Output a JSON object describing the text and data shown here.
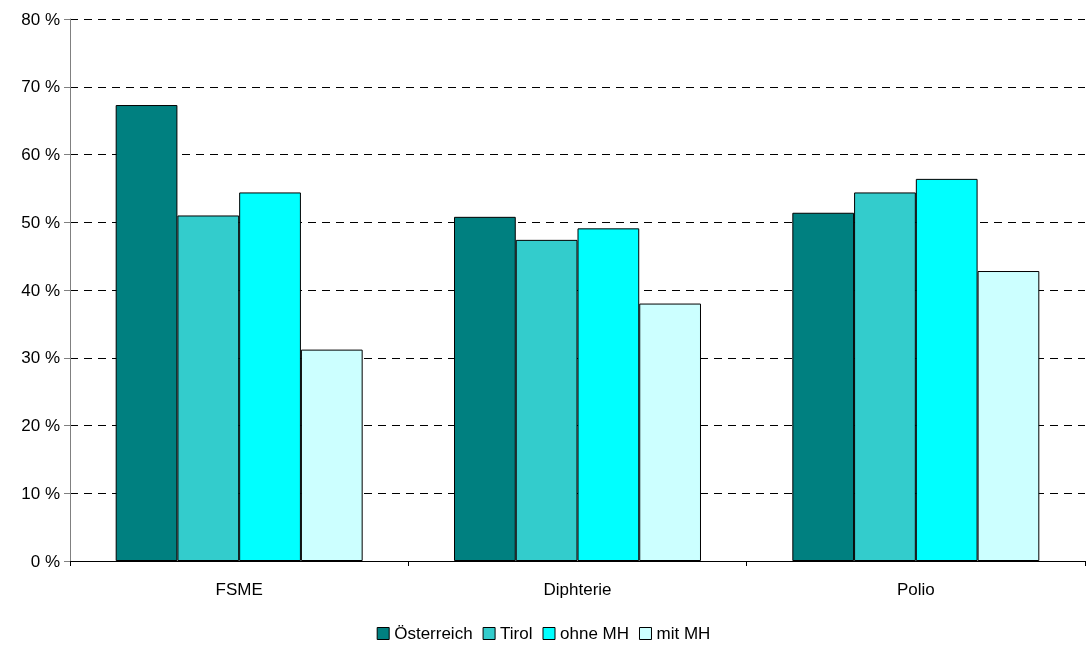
{
  "chart_data": {
    "type": "bar",
    "categories": [
      "FSME",
      "Diphterie",
      "Polio"
    ],
    "series": [
      {
        "name": "Österreich",
        "color": "#008080",
        "values": [
          67.3,
          50.8,
          51.4
        ]
      },
      {
        "name": "Tirol",
        "color": "#33cccc",
        "values": [
          51.0,
          47.4,
          54.4
        ]
      },
      {
        "name": "ohne MH",
        "color": "#00ffff",
        "values": [
          54.4,
          49.1,
          56.4
        ]
      },
      {
        "name": "mit MH",
        "color": "#ccffff",
        "values": [
          31.2,
          38.0,
          42.8
        ]
      }
    ],
    "ylim": [
      0,
      80
    ],
    "yticks": [
      {
        "value": 0,
        "label": "0 %"
      },
      {
        "value": 10,
        "label": "10 %"
      },
      {
        "value": 20,
        "label": "20 %"
      },
      {
        "value": 30,
        "label": "30 %"
      },
      {
        "value": 40,
        "label": "40 %"
      },
      {
        "value": 50,
        "label": "50 %"
      },
      {
        "value": 60,
        "label": "60 %"
      },
      {
        "value": 70,
        "label": "70 %"
      },
      {
        "value": 80,
        "label": "80 %"
      }
    ],
    "grid": "y",
    "legend": "bottom"
  }
}
